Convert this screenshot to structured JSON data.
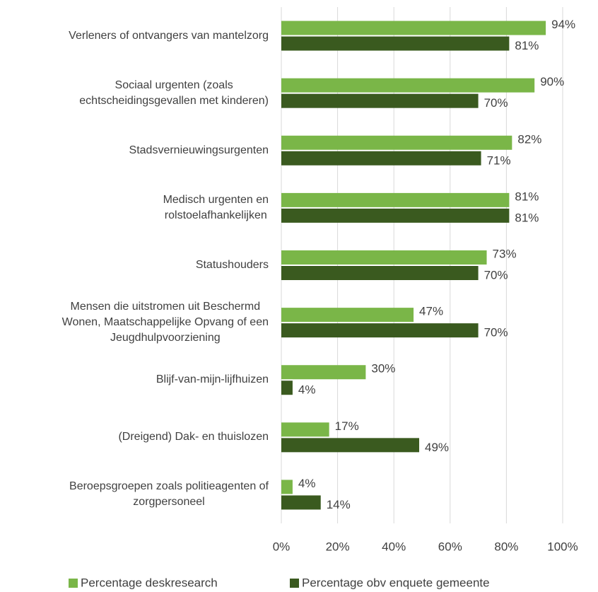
{
  "chart_data": {
    "type": "hbar",
    "categories": [
      "Verleners of ontvangers van mantelzorg",
      "Sociaal urgenten (zoals\nechtscheidingsgevallen met kinderen)",
      "Stadsvernieuwingsurgenten",
      "Medisch urgenten en\nrolstoelafhankelijken",
      "Statushouders",
      "Mensen die uitstromen uit Beschermd\nWonen, Maatschappelijke Opvang of een\nJeugdhulpvoorziening",
      "Blijf-van-mijn-lijfhuizen",
      "(Dreigend) Dak- en thuislozen",
      "Beroepsgroepen zoals politieagenten of\nzorgpersoneel"
    ],
    "series": [
      {
        "name": "Percentage deskresearch",
        "color": "#7ab648",
        "values": [
          94,
          90,
          82,
          81,
          73,
          47,
          30,
          17,
          4
        ],
        "value_labels": [
          "94%",
          "90%",
          "82%",
          "81%",
          "73%",
          "47%",
          "30%",
          "17%",
          "4%"
        ]
      },
      {
        "name": "Percentage obv enquete gemeente",
        "color": "#3a5a1f",
        "values": [
          81,
          70,
          71,
          81,
          70,
          70,
          4,
          49,
          14
        ],
        "value_labels": [
          "81%",
          "70%",
          "71%",
          "81%",
          "70%",
          "70%",
          "4%",
          "49%",
          "14%"
        ]
      }
    ],
    "xlim": [
      0,
      100
    ],
    "xticks": [
      {
        "value": 0,
        "label": "0%"
      },
      {
        "value": 20,
        "label": "20%"
      },
      {
        "value": 40,
        "label": "40%"
      },
      {
        "value": 60,
        "label": "60%"
      },
      {
        "value": 80,
        "label": "80%"
      },
      {
        "value": 100,
        "label": "100%"
      }
    ],
    "grid": true,
    "legend": "bottom"
  }
}
